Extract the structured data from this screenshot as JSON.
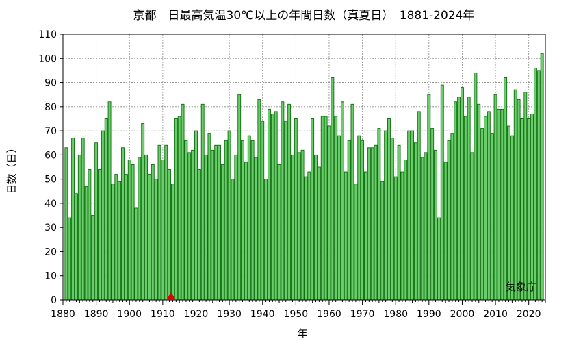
{
  "chart_data": {
    "type": "bar",
    "title": "京都　日最高気温30℃以上の年間日数（真夏日）　1881-2024年",
    "xlabel": "年",
    "ylabel": "日数（日）",
    "xlim": [
      1880,
      2025
    ],
    "ylim": [
      0,
      110
    ],
    "x_ticks": [
      "1880",
      "1890",
      "1900",
      "1910",
      "1920",
      "1930",
      "1940",
      "1950",
      "1960",
      "1970",
      "1980",
      "1990",
      "2000",
      "2010",
      "2020"
    ],
    "y_ticks": [
      "0",
      "10",
      "20",
      "30",
      "40",
      "50",
      "60",
      "70",
      "80",
      "90",
      "100",
      "110"
    ],
    "grid": true,
    "x": [
      1881,
      1882,
      1883,
      1884,
      1885,
      1886,
      1887,
      1888,
      1889,
      1890,
      1891,
      1892,
      1893,
      1894,
      1895,
      1896,
      1897,
      1898,
      1899,
      1900,
      1901,
      1902,
      1903,
      1904,
      1905,
      1906,
      1907,
      1908,
      1909,
      1910,
      1911,
      1912,
      1913,
      1914,
      1915,
      1916,
      1917,
      1918,
      1919,
      1920,
      1921,
      1922,
      1923,
      1924,
      1925,
      1926,
      1927,
      1928,
      1929,
      1930,
      1931,
      1932,
      1933,
      1934,
      1935,
      1936,
      1937,
      1938,
      1939,
      1940,
      1941,
      1942,
      1943,
      1944,
      1945,
      1946,
      1947,
      1948,
      1949,
      1950,
      1951,
      1952,
      1953,
      1954,
      1955,
      1956,
      1957,
      1958,
      1959,
      1960,
      1961,
      1962,
      1963,
      1964,
      1965,
      1966,
      1967,
      1968,
      1969,
      1970,
      1971,
      1972,
      1973,
      1974,
      1975,
      1976,
      1977,
      1978,
      1979,
      1980,
      1981,
      1982,
      1983,
      1984,
      1985,
      1986,
      1987,
      1988,
      1989,
      1990,
      1991,
      1992,
      1993,
      1994,
      1995,
      1996,
      1997,
      1998,
      1999,
      2000,
      2001,
      2002,
      2003,
      2004,
      2005,
      2006,
      2007,
      2008,
      2009,
      2010,
      2011,
      2012,
      2013,
      2014,
      2015,
      2016,
      2017,
      2018,
      2019,
      2020,
      2021,
      2022,
      2023,
      2024
    ],
    "values": [
      63,
      34,
      67,
      44,
      60,
      67,
      47,
      54,
      35,
      65,
      54,
      70,
      75,
      82,
      48,
      52,
      49,
      63,
      52,
      58,
      56,
      38,
      59,
      73,
      60,
      52,
      56,
      50,
      64,
      58,
      64,
      54,
      48,
      75,
      76,
      81,
      66,
      61,
      62,
      70,
      54,
      81,
      60,
      69,
      62,
      64,
      64,
      56,
      66,
      70,
      50,
      60,
      85,
      66,
      57,
      68,
      66,
      59,
      83,
      74,
      50,
      79,
      77,
      78,
      56,
      82,
      74,
      81,
      60,
      75,
      61,
      62,
      51,
      53,
      75,
      60,
      55,
      76,
      76,
      72,
      92,
      76,
      68,
      82,
      53,
      66,
      81,
      48,
      68,
      66,
      53,
      63,
      63,
      64,
      71,
      49,
      70,
      75,
      67,
      51,
      64,
      53,
      58,
      70,
      70,
      65,
      78,
      59,
      61,
      85,
      71,
      62,
      34,
      89,
      57,
      66,
      69,
      82,
      84,
      88,
      76,
      84,
      61,
      94,
      81,
      71,
      76,
      78,
      69,
      85,
      79,
      79,
      92,
      72,
      68,
      87,
      83,
      75,
      86,
      75,
      77,
      96,
      95,
      102
    ],
    "marker": {
      "year": 1912.5,
      "value": 0,
      "color": "#dd0000",
      "shape": "triangle"
    },
    "credit": "気象庁",
    "colors": {
      "bar_fill": "#6acc6a",
      "bar_stroke": "#0e6e0e",
      "grid": "#8a8a8a",
      "axis": "#000000"
    }
  }
}
